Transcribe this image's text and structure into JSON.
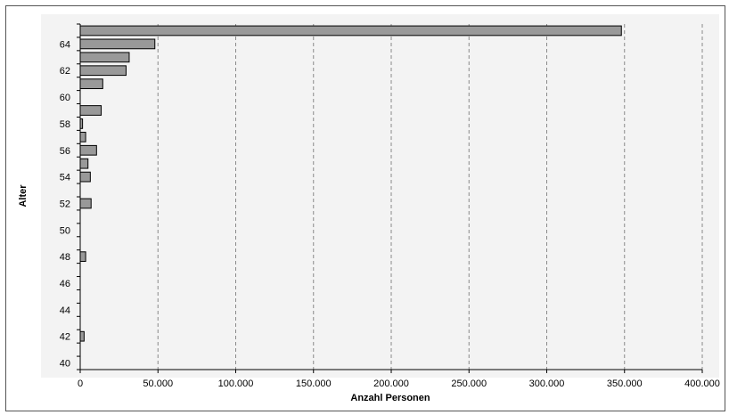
{
  "chart_data": {
    "type": "bar",
    "orientation": "horizontal",
    "xlabel": "Anzahl Personen",
    "ylabel": "Alter",
    "xlim": [
      0,
      400000
    ],
    "x_ticks": [
      0,
      50000,
      100000,
      150000,
      200000,
      250000,
      300000,
      350000,
      400000
    ],
    "x_tick_labels": [
      "0",
      "50.000",
      "100.000",
      "150.000",
      "200.000",
      "250.000",
      "300.000",
      "350.000",
      "400.000"
    ],
    "y_tick_labels": [
      "40",
      "42",
      "44",
      "46",
      "48",
      "50",
      "52",
      "54",
      "56",
      "58",
      "60",
      "62",
      "64"
    ],
    "categories": [
      40,
      41,
      42,
      43,
      44,
      45,
      46,
      47,
      48,
      49,
      50,
      51,
      52,
      53,
      54,
      55,
      56,
      57,
      58,
      59,
      60,
      61,
      62,
      63,
      64,
      65
    ],
    "values": [
      0,
      0,
      2500,
      0,
      0,
      0,
      0,
      0,
      3500,
      0,
      0,
      0,
      7000,
      0,
      6500,
      5000,
      10500,
      3500,
      1500,
      13500,
      0,
      14500,
      29500,
      31500,
      48000,
      348000
    ],
    "grid": "vertical dashed",
    "bar_color": "#999999"
  }
}
